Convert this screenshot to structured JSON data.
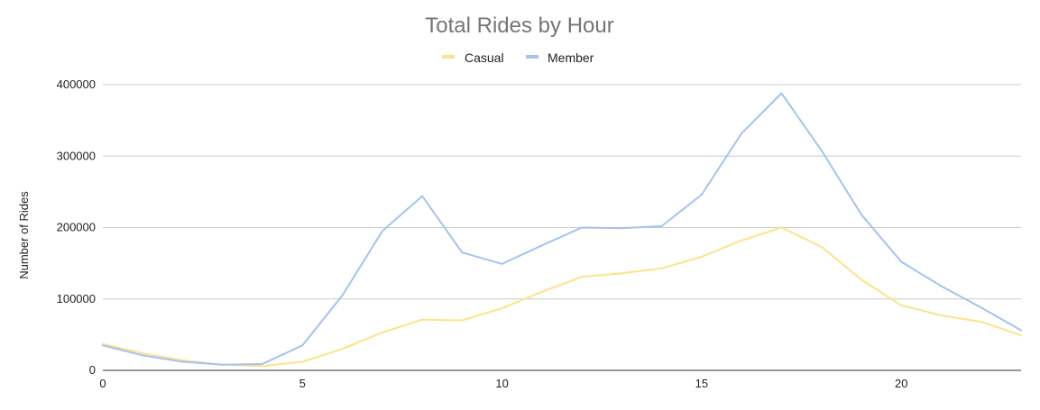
{
  "chart_data": {
    "type": "line",
    "title": "Total Rides by Hour",
    "xlabel": "",
    "ylabel": "Number of Rides",
    "x": [
      0,
      1,
      2,
      3,
      4,
      5,
      6,
      7,
      8,
      9,
      10,
      11,
      12,
      13,
      14,
      15,
      16,
      17,
      18,
      19,
      20,
      21,
      22,
      23
    ],
    "xlim": [
      0,
      23
    ],
    "ylim": [
      0,
      400000
    ],
    "x_ticks": [
      "0",
      "5",
      "10",
      "15",
      "20"
    ],
    "y_ticks": [
      "0",
      "100000",
      "200000",
      "300000",
      "400000"
    ],
    "grid": true,
    "legend_position": "top",
    "series": [
      {
        "name": "Casual",
        "color": "#fce38a",
        "values": [
          37000,
          24000,
          14000,
          8000,
          6000,
          12000,
          30000,
          53000,
          71000,
          70000,
          87000,
          110000,
          131000,
          136000,
          143000,
          159000,
          182000,
          200000,
          173000,
          127000,
          91000,
          77000,
          68000,
          49000
        ]
      },
      {
        "name": "Member",
        "color": "#a4c2f4",
        "values": [
          35000,
          21000,
          12000,
          8000,
          9000,
          35000,
          105000,
          195000,
          244000,
          165000,
          149000,
          175000,
          200000,
          199000,
          202000,
          246000,
          332000,
          388000,
          308000,
          218000,
          152000,
          118000,
          88000,
          56000
        ]
      }
    ]
  }
}
